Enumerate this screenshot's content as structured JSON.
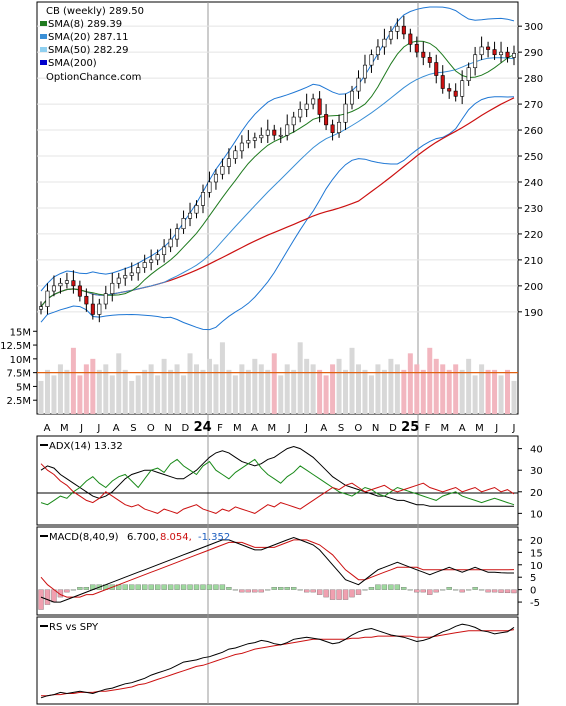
{
  "colors": {
    "sma8": "#1f7a1f",
    "sma20": "#3a8fd6",
    "sma50": "#8fd0f0",
    "sma200": "#0000cc",
    "red_line": "#cc1111",
    "bollinger": "#1f77d4",
    "bollinger_yellow": "#e8e800",
    "up_candle": "#ffffff",
    "down_candle": "#cc1111",
    "volume_up": "#d8d8d8",
    "volume_down": "#f2b6bf",
    "volume_avg": "#e06010",
    "adx_line": "#000000",
    "di_plus": "#1a8a1a",
    "di_minus": "#cc1111",
    "macd_line": "#000000",
    "signal_line": "#cc1111",
    "hist_pos": "#9ed89e",
    "hist_neg": "#f0a0b0",
    "rs_line": "#000000",
    "rs_ma": "#cc1111"
  },
  "legend": {
    "title": "CB (weekly) 289.50",
    "items": [
      {
        "label": "SMA(8) 289.39",
        "color": "#1f7a1f"
      },
      {
        "label": "SMA(20) 287.11",
        "color": "#3a8fd6"
      },
      {
        "label": "SMA(50) 282.29",
        "color": "#8fd0f0"
      },
      {
        "label": "SMA(200)",
        "color": "#0000cc"
      }
    ],
    "source": "OptionChance.com"
  },
  "x_axis": {
    "labels": [
      "A",
      "M",
      "J",
      "J",
      "A",
      "S",
      "O",
      "N",
      "D",
      "24",
      "F",
      "M",
      "A",
      "M",
      "J",
      "J",
      "A",
      "S",
      "O",
      "N",
      "D",
      "25",
      "F",
      "M",
      "A",
      "M",
      "J",
      "J"
    ]
  },
  "chart_data": [
    {
      "type": "candlestick",
      "title": "CB (weekly) 289.50",
      "y_ticks": [
        190,
        200,
        210,
        220,
        230,
        240,
        250,
        260,
        270,
        280,
        290,
        300
      ],
      "ylim": [
        183,
        307
      ],
      "close": [
        192,
        198,
        200,
        201,
        202,
        200,
        196,
        193,
        189,
        193,
        197,
        201,
        203,
        204,
        205,
        207,
        209,
        210,
        212,
        215,
        218,
        222,
        226,
        228,
        231,
        236,
        240,
        243,
        246,
        249,
        252,
        255,
        256,
        257,
        258,
        260,
        258,
        258,
        262,
        265,
        268,
        270,
        272,
        266,
        262,
        259,
        263,
        270,
        275,
        280,
        285,
        289,
        292,
        295,
        298,
        300,
        297,
        293,
        290,
        288,
        286,
        281,
        276,
        275,
        273,
        279,
        284,
        289,
        292,
        291,
        289,
        290,
        288,
        289.5
      ],
      "sma8_last": 289.39,
      "sma20_last": 287.11,
      "sma50_last": 282.29
    },
    {
      "type": "bar",
      "title": "Volume",
      "y_ticks": [
        "2.5M",
        "5M",
        "7.5M",
        "10M",
        "12.5M",
        "15M"
      ],
      "tick_values": [
        2.5,
        5,
        7.5,
        10,
        12.5,
        15
      ],
      "ylim": [
        0,
        16.5
      ],
      "values": [
        6,
        8,
        7,
        9,
        8,
        12,
        7,
        9,
        10,
        8,
        9,
        7,
        11,
        8,
        6,
        7,
        8,
        9,
        7,
        10,
        8,
        9,
        7,
        11,
        9,
        8,
        10,
        9,
        13,
        8,
        7,
        9,
        8,
        10,
        9,
        8,
        11,
        7,
        9,
        8,
        13,
        10,
        9,
        8,
        7,
        9,
        10,
        8,
        12,
        9,
        8,
        7,
        9,
        8,
        10,
        9,
        8,
        11,
        9,
        8,
        12,
        10,
        9,
        8,
        9,
        8,
        10,
        7,
        9,
        8,
        8,
        7,
        8,
        6
      ],
      "average": 7.5
    },
    {
      "type": "line",
      "title": "ADX(14) 13.32",
      "y_ticks": [
        10,
        20,
        30,
        40
      ],
      "ylim": [
        6,
        44
      ],
      "series": [
        {
          "name": "ADX(14) 13.32",
          "values": [
            30,
            32,
            31,
            28,
            26,
            24,
            22,
            20,
            18,
            17,
            18,
            20,
            23,
            26,
            28,
            29,
            30,
            30,
            29,
            28,
            27,
            26,
            26,
            28,
            30,
            33,
            36,
            38,
            39,
            38,
            36,
            34,
            33,
            32,
            33,
            35,
            36,
            38,
            40,
            41,
            40,
            38,
            36,
            33,
            30,
            27,
            25,
            23,
            22,
            21,
            20,
            19,
            18,
            18,
            17,
            16,
            16,
            15,
            14,
            14,
            13.3,
            13.3,
            13.3,
            13.3,
            13.3,
            13.3,
            13.3,
            13.3,
            13.3,
            13.3,
            13.3,
            13.3,
            13.3,
            13.3
          ]
        },
        {
          "values": [
            15,
            14,
            16,
            18,
            17,
            20,
            22,
            25,
            27,
            24,
            22,
            25,
            27,
            28,
            25,
            22,
            26,
            30,
            31,
            29,
            33,
            35,
            32,
            30,
            28,
            32,
            34,
            30,
            28,
            26,
            29,
            31,
            33,
            35,
            31,
            28,
            26,
            24,
            27,
            29,
            32,
            30,
            28,
            26,
            24,
            22,
            20,
            19,
            18,
            20,
            22,
            21,
            19,
            18,
            20,
            22,
            21,
            20,
            19,
            18,
            17,
            16,
            18,
            19,
            20,
            18,
            17,
            16,
            15,
            16,
            17,
            16,
            15,
            14
          ]
        },
        {
          "values": [
            33,
            30,
            28,
            25,
            23,
            20,
            18,
            16,
            15,
            17,
            20,
            18,
            16,
            14,
            13,
            14,
            12,
            11,
            10,
            12,
            11,
            10,
            12,
            13,
            14,
            12,
            11,
            10,
            12,
            11,
            13,
            12,
            11,
            10,
            12,
            14,
            13,
            15,
            14,
            13,
            12,
            14,
            16,
            18,
            20,
            22,
            21,
            23,
            24,
            22,
            20,
            21,
            22,
            23,
            21,
            20,
            21,
            22,
            23,
            24,
            22,
            21,
            20,
            21,
            22,
            20,
            21,
            22,
            20,
            21,
            22,
            20,
            21,
            19
          ]
        }
      ]
    },
    {
      "type": "line",
      "title": "MACD(8,40,9)",
      "legend_values": [
        "6.700,",
        "8.054,",
        "-1.352"
      ],
      "y_ticks": [
        -5,
        0,
        5,
        10,
        15,
        20
      ],
      "ylim": [
        -9,
        24
      ],
      "series": [
        {
          "name": "MACD",
          "values": [
            -3,
            -4,
            -5,
            -5,
            -4,
            -3,
            -2,
            -1,
            0,
            1,
            2,
            3,
            4,
            5,
            6,
            7,
            8,
            9,
            10,
            11,
            12,
            13,
            14,
            15,
            16,
            17,
            18,
            19,
            20,
            20,
            19,
            18,
            17,
            16,
            16,
            17,
            18,
            19,
            20,
            21,
            20,
            19,
            18,
            16,
            13,
            10,
            7,
            4,
            3,
            2,
            4,
            6,
            8,
            9,
            10,
            11,
            10,
            9,
            8,
            7,
            6,
            7,
            8,
            9,
            8,
            7,
            8,
            9,
            8,
            7,
            7,
            6.8,
            6.7,
            6.7
          ]
        },
        {
          "name": "Signal",
          "values": [
            5,
            2,
            0,
            -2,
            -3,
            -3,
            -3,
            -2,
            -2,
            -1,
            0,
            1,
            2,
            3,
            4,
            5,
            6,
            7,
            8,
            9,
            10,
            11,
            12,
            13,
            14,
            15,
            16,
            17,
            18,
            19,
            19,
            19,
            18,
            17,
            17,
            17,
            17,
            18,
            19,
            20,
            20,
            20,
            19,
            18,
            16,
            14,
            11,
            8,
            6,
            4,
            4,
            5,
            6,
            7,
            8,
            9,
            9,
            9,
            9,
            8,
            8,
            8,
            8,
            8,
            8,
            8,
            8,
            8,
            8,
            8,
            8,
            8,
            8,
            8.05
          ]
        },
        {
          "name": "Histogram",
          "values": [
            -8,
            -6,
            -5,
            -3,
            -1,
            0,
            1,
            1,
            2,
            2,
            2,
            2,
            2,
            2,
            2,
            2,
            2,
            2,
            2,
            2,
            2,
            2,
            2,
            2,
            2,
            2,
            2,
            2,
            2,
            1,
            0,
            -1,
            -1,
            -1,
            -1,
            0,
            1,
            1,
            1,
            1,
            0,
            -1,
            -1,
            -2,
            -3,
            -4,
            -4,
            -4,
            -3,
            -2,
            0,
            1,
            2,
            2,
            2,
            2,
            1,
            0,
            -1,
            -1,
            -2,
            -1,
            0,
            1,
            0,
            -1,
            0,
            1,
            0,
            -1,
            -1,
            -1.2,
            -1.3,
            -1.352
          ]
        }
      ]
    },
    {
      "type": "line",
      "title": "RS vs SPY",
      "series": [
        {
          "name": "RS",
          "values": [
            12,
            14,
            15,
            17,
            16,
            17,
            18,
            17,
            16,
            18,
            20,
            21,
            23,
            25,
            26,
            28,
            30,
            33,
            35,
            37,
            39,
            42,
            45,
            46,
            47,
            49,
            50,
            52,
            54,
            57,
            58,
            60,
            62,
            63,
            65,
            64,
            62,
            61,
            63,
            66,
            67,
            68,
            67,
            66,
            64,
            62,
            63,
            66,
            70,
            73,
            75,
            76,
            74,
            72,
            70,
            69,
            68,
            66,
            64,
            65,
            67,
            70,
            73,
            75,
            78,
            80,
            79,
            77,
            74,
            73,
            71,
            72,
            73,
            77
          ]
        },
        {
          "name": "RS MA",
          "values": [
            14,
            14,
            15,
            15,
            16,
            16,
            17,
            17,
            17,
            18,
            18,
            19,
            20,
            21,
            22,
            24,
            25,
            27,
            29,
            31,
            33,
            35,
            37,
            39,
            41,
            42,
            44,
            46,
            48,
            50,
            52,
            53,
            55,
            57,
            58,
            59,
            60,
            61,
            62,
            63,
            64,
            65,
            66,
            66,
            66,
            66,
            66,
            66,
            67,
            67,
            68,
            68,
            69,
            69,
            69,
            69,
            69,
            69,
            68,
            68,
            68,
            69,
            70,
            71,
            72,
            73,
            74,
            74,
            74,
            74,
            74,
            74,
            74,
            75
          ]
        }
      ]
    }
  ]
}
